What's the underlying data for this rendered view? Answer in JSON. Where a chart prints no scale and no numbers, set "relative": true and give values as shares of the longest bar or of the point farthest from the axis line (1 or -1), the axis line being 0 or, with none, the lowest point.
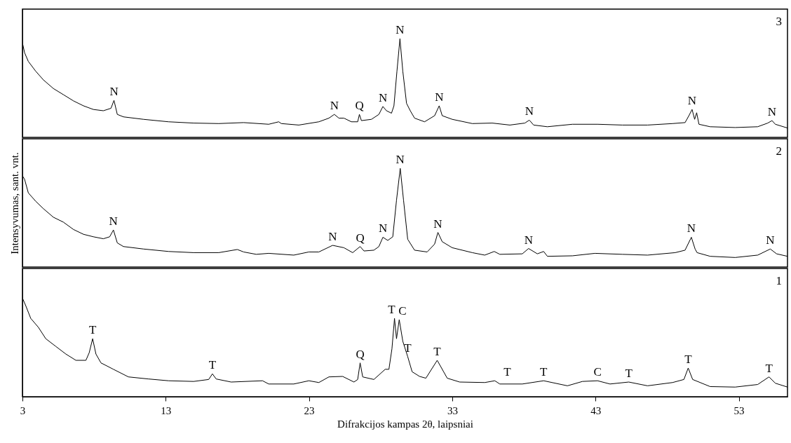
{
  "chart_data": [
    {
      "type": "line",
      "relative": true,
      "xlim": [
        3,
        56.4
      ],
      "tick_labels": false,
      "annotations": [
        "3",
        {
          "text": "N",
          "x": 9.39,
          "y": 0.375
        },
        {
          "text": "N",
          "x": 24.77,
          "y": 0.233
        },
        {
          "text": "Q",
          "x": 26.52,
          "y": 0.233
        },
        {
          "text": "N",
          "x": 28.16,
          "y": 0.313
        },
        {
          "text": "N",
          "x": 29.35,
          "y": 1
        },
        {
          "text": "N",
          "x": 32.09,
          "y": 0.32
        },
        {
          "text": "N",
          "x": 38.38,
          "y": 0.175
        },
        {
          "text": "N",
          "x": 49.74,
          "y": 0.283
        },
        {
          "text": "N",
          "x": 55.32,
          "y": 0.17
        }
      ],
      "series": [
        {
          "color": "#000000",
          "x": [
            3,
            3.15,
            3.41,
            3.93,
            4.46,
            5.16,
            5.86,
            6.56,
            7.26,
            7.95,
            8.65,
            9.18,
            9.39,
            9.62,
            10.05,
            11.45,
            13.2,
            14.95,
            16.7,
            18.44,
            20.19,
            20.89,
            21.07,
            22.29,
            23.69,
            24.39,
            24.77,
            25.09,
            25.44,
            25.96,
            26.4,
            26.52,
            26.66,
            27.36,
            27.88,
            28.16,
            28.41,
            28.76,
            28.93,
            29.14,
            29.35,
            29.55,
            29.81,
            30.07,
            30.37,
            31.07,
            31.77,
            32.09,
            32.3,
            33,
            34.4,
            35.79,
            37.02,
            38.07,
            38.38,
            38.68,
            39.64,
            41.39,
            43.14,
            44.88,
            46.63,
            48.38,
            49.25,
            49.52,
            49.74,
            49.92,
            50.06,
            50.22,
            51,
            52.75,
            54.32,
            55.02,
            55.32,
            55.55,
            56.4
          ],
          "values": [
            0.958,
            0.858,
            0.77,
            0.67,
            0.583,
            0.495,
            0.433,
            0.37,
            0.32,
            0.283,
            0.27,
            0.295,
            0.375,
            0.233,
            0.208,
            0.183,
            0.158,
            0.145,
            0.14,
            0.15,
            0.133,
            0.158,
            0.14,
            0.125,
            0.158,
            0.195,
            0.233,
            0.195,
            0.195,
            0.158,
            0.158,
            0.233,
            0.17,
            0.183,
            0.233,
            0.313,
            0.27,
            0.245,
            0.32,
            0.67,
            1,
            0.67,
            0.345,
            0.27,
            0.195,
            0.158,
            0.22,
            0.32,
            0.22,
            0.183,
            0.14,
            0.145,
            0.125,
            0.145,
            0.175,
            0.125,
            0.108,
            0.133,
            0.133,
            0.125,
            0.125,
            0.14,
            0.15,
            0.22,
            0.283,
            0.183,
            0.25,
            0.133,
            0.108,
            0.1,
            0.108,
            0.145,
            0.17,
            0.133,
            0.095
          ]
        }
      ]
    },
    {
      "type": "line",
      "relative": true,
      "xlim": [
        3,
        56.4
      ],
      "tick_labels": false,
      "ylabel": "Intensyvumas, sant. vnt.",
      "annotations": [
        "2",
        {
          "text": "N",
          "x": 9.35,
          "y": 0.376
        },
        {
          "text": "N",
          "x": 24.65,
          "y": 0.22
        },
        {
          "text": "Q",
          "x": 26.57,
          "y": 0.208
        },
        {
          "text": "N",
          "x": 28.16,
          "y": 0.302
        },
        {
          "text": "N",
          "x": 29.37,
          "y": 1
        },
        {
          "text": "N",
          "x": 32.0,
          "y": 0.351
        },
        {
          "text": "N",
          "x": 38.33,
          "y": 0.188
        },
        {
          "text": "N",
          "x": 49.69,
          "y": 0.302
        },
        {
          "text": "N",
          "x": 55.2,
          "y": 0.183
        }
      ],
      "series": [
        {
          "color": "#000000",
          "x": [
            3,
            3.15,
            3.41,
            3.93,
            4.46,
            5.16,
            5.86,
            6.56,
            7.26,
            7.95,
            8.65,
            9.09,
            9.35,
            9.62,
            10.05,
            11.45,
            13.2,
            14.95,
            16.7,
            18,
            18.44,
            19.32,
            20.19,
            21.94,
            22.99,
            23.69,
            24.65,
            25.44,
            26.05,
            26.57,
            26.84,
            27.53,
            27.88,
            28.16,
            28.5,
            28.85,
            29.11,
            29.37,
            29.6,
            29.89,
            30.37,
            31.25,
            31.77,
            32,
            32.3,
            33,
            34.4,
            35.27,
            35.93,
            36.32,
            37.89,
            38.33,
            38.94,
            39.38,
            39.64,
            41.39,
            42.96,
            44.88,
            46.63,
            48.56,
            49.25,
            49.69,
            49.95,
            50.09,
            51,
            52.75,
            54.32,
            55.2,
            55.64,
            56.4
          ],
          "values": [
            0.926,
            0.889,
            0.752,
            0.666,
            0.592,
            0.505,
            0.455,
            0.381,
            0.332,
            0.307,
            0.287,
            0.307,
            0.376,
            0.245,
            0.208,
            0.183,
            0.158,
            0.146,
            0.146,
            0.178,
            0.153,
            0.129,
            0.139,
            0.121,
            0.153,
            0.153,
            0.22,
            0.196,
            0.146,
            0.208,
            0.163,
            0.171,
            0.208,
            0.302,
            0.27,
            0.307,
            0.678,
            1,
            0.678,
            0.282,
            0.171,
            0.153,
            0.233,
            0.351,
            0.257,
            0.196,
            0.146,
            0.121,
            0.158,
            0.129,
            0.134,
            0.188,
            0.134,
            0.158,
            0.109,
            0.114,
            0.139,
            0.129,
            0.121,
            0.146,
            0.171,
            0.302,
            0.183,
            0.146,
            0.109,
            0.097,
            0.121,
            0.183,
            0.134,
            0.109
          ]
        }
      ]
    },
    {
      "type": "line",
      "relative": true,
      "xlim": [
        3,
        56.4
      ],
      "xticks": [
        3,
        13,
        23,
        33,
        43,
        53
      ],
      "tick_labels": "x",
      "xlabel": "Difrakcijos kampas 2θ, laipsniai",
      "annotations": [
        "1",
        {
          "text": "T",
          "x": 7.9,
          "y": 0.588
        },
        {
          "text": "T",
          "x": 16.26,
          "y": 0.232
        },
        {
          "text": "Q",
          "x": 26.57,
          "y": 0.343
        },
        {
          "text": "T",
          "x": 28.97,
          "y": 0.794
        },
        {
          "text": "C",
          "x": 29.3,
          "y": 0.781
        },
        {
          "text": "T",
          "x": 29.89,
          "y": 0.407
        },
        {
          "text": "T",
          "x": 31.95,
          "y": 0.369
        },
        {
          "text": "T",
          "x": 36.84,
          "y": 0.16
        },
        {
          "text": "T",
          "x": 39.38,
          "y": 0.162
        },
        {
          "text": "C",
          "x": 43.14,
          "y": 0.162
        },
        {
          "text": "T",
          "x": 45.32,
          "y": 0.149
        },
        {
          "text": "T",
          "x": 49.47,
          "y": 0.291
        },
        {
          "text": "T",
          "x": 55.11,
          "y": 0.201
        }
      ],
      "series": [
        {
          "color": "#000000",
          "x": [
            3,
            3.23,
            3.58,
            4.11,
            4.63,
            5.33,
            6.03,
            6.73,
            7.43,
            7.66,
            7.9,
            8.13,
            8.48,
            9.35,
            10.4,
            11.8,
            13.2,
            14.95,
            16,
            16.26,
            16.52,
            17.57,
            19.76,
            20.19,
            21.94,
            22.99,
            23.69,
            24.39,
            25.35,
            26.14,
            26.4,
            26.57,
            26.75,
            27.53,
            28.32,
            28.58,
            28.79,
            28.97,
            29.11,
            29.3,
            29.55,
            29.89,
            30.2,
            30.72,
            31.16,
            31.95,
            32.65,
            33.52,
            35.27,
            35.97,
            36.32,
            37.89,
            39.38,
            41.04,
            42.09,
            43.14,
            44.01,
            45.32,
            46.63,
            48.38,
            49.17,
            49.47,
            49.78,
            51,
            52.75,
            54.32,
            55.11,
            55.55,
            56.4
          ],
          "values": [
            1,
            0.923,
            0.794,
            0.704,
            0.588,
            0.51,
            0.433,
            0.369,
            0.369,
            0.446,
            0.588,
            0.433,
            0.343,
            0.278,
            0.201,
            0.18,
            0.162,
            0.155,
            0.175,
            0.232,
            0.18,
            0.149,
            0.162,
            0.129,
            0.129,
            0.162,
            0.144,
            0.201,
            0.206,
            0.149,
            0.175,
            0.343,
            0.201,
            0.175,
            0.278,
            0.278,
            0.485,
            0.794,
            0.588,
            0.781,
            0.562,
            0.407,
            0.253,
            0.206,
            0.188,
            0.369,
            0.188,
            0.149,
            0.144,
            0.162,
            0.129,
            0.129,
            0.162,
            0.111,
            0.155,
            0.162,
            0.129,
            0.149,
            0.111,
            0.144,
            0.175,
            0.291,
            0.175,
            0.103,
            0.098,
            0.124,
            0.201,
            0.137,
            0.098
          ]
        }
      ]
    }
  ]
}
